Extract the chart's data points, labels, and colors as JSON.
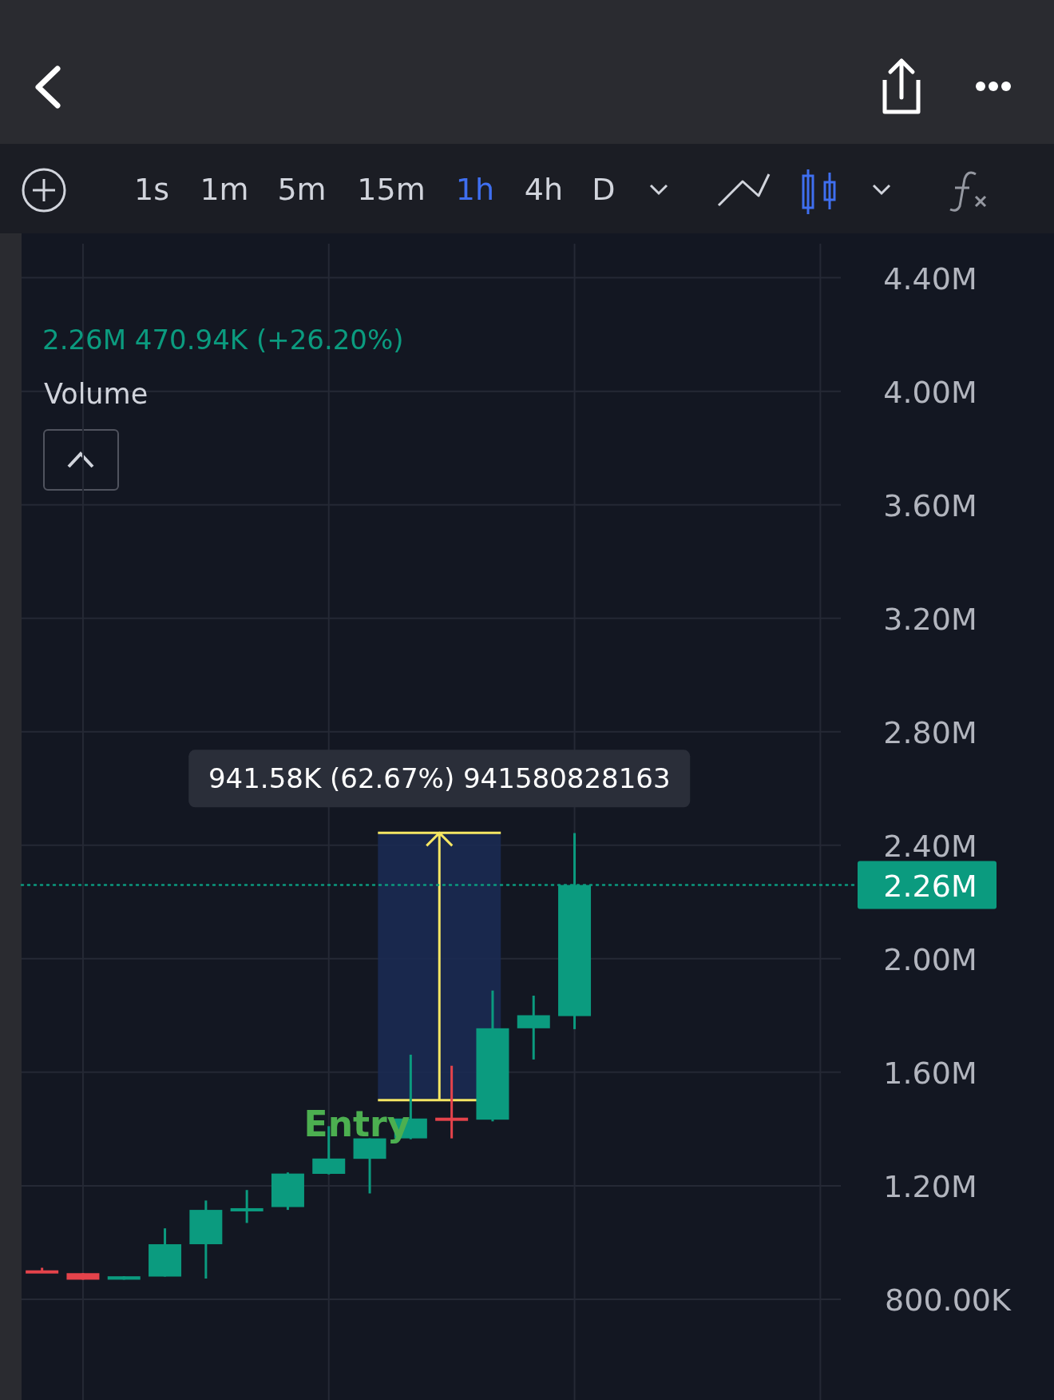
{
  "chart_data": {
    "type": "candlestick",
    "categories": [
      null,
      null,
      null,
      null,
      null,
      null,
      null,
      null,
      null,
      null,
      null,
      null,
      null,
      null,
      null,
      null,
      null,
      null,
      null,
      null
    ],
    "ohlc": [
      [
        902000,
        911000,
        896000,
        897000
      ],
      [
        892000,
        892000,
        869000,
        869000
      ],
      [
        869000,
        881000,
        869000,
        881000
      ],
      [
        880000,
        1050000,
        880000,
        994000
      ],
      [
        994000,
        1148000,
        873000,
        1115000
      ],
      [
        1115000,
        1185000,
        1069000,
        1121000
      ],
      [
        1125000,
        1247000,
        1115000,
        1243000
      ],
      [
        1242000,
        1410000,
        1240000,
        1296000
      ],
      [
        1295000,
        1367000,
        1173000,
        1367000
      ],
      [
        1367000,
        1662000,
        1364000,
        1437000
      ],
      [
        1440000,
        1623000,
        1367000,
        1436000
      ],
      [
        1433000,
        1888000,
        1427000,
        1755000
      ],
      [
        1755000,
        1870000,
        1645000,
        1801000
      ],
      [
        1798000,
        2443000,
        1752000,
        2260000
      ],
      null,
      null,
      null,
      null,
      null,
      null
    ],
    "colors": [
      "#e5434b",
      "#e5434b",
      "#0b9b7f",
      "#0b9b7f",
      "#0b9b7f",
      "#0b9b7f",
      "#0b9b7f",
      "#0b9b7f",
      "#0b9b7f",
      "#0b9b7f",
      "#e5434b",
      "#0b9b7f",
      "#0b9b7f",
      "#0b9b7f",
      null,
      null,
      null,
      null,
      null,
      null
    ],
    "ylim": [
      445000,
      4520000
    ],
    "yticks": [
      {
        "value": 4400000,
        "label": "4.40M"
      },
      {
        "value": 4000000,
        "label": "4.00M"
      },
      {
        "value": 3600000,
        "label": "3.60M"
      },
      {
        "value": 3200000,
        "label": "3.20M"
      },
      {
        "value": 2800000,
        "label": "2.80M"
      },
      {
        "value": 2400000,
        "label": "2.40M"
      },
      {
        "value": 2000000,
        "label": "2.00M"
      },
      {
        "value": 1600000,
        "label": "1.60M"
      },
      {
        "value": 1200000,
        "label": "1.20M"
      },
      {
        "value": 800000,
        "label": "800.00K"
      }
    ],
    "grid": true,
    "ref_lines": [
      {
        "axis": "y",
        "value": 2260000,
        "label": "2.26M",
        "color": "#0b9b7f",
        "line_style": "dotted"
      }
    ],
    "bands": [
      {
        "axis": "y",
        "from": 1502000,
        "to": 2443580,
        "label": "941.58K (62.67%) 941580828163",
        "color": "#1b2a52"
      }
    ],
    "annotations": [
      "2.26M 470.94K (+26.20%)",
      "Volume",
      "1s",
      "1m",
      "5m",
      "15m",
      "1h",
      "4h",
      "D",
      "Entry"
    ]
  }
}
